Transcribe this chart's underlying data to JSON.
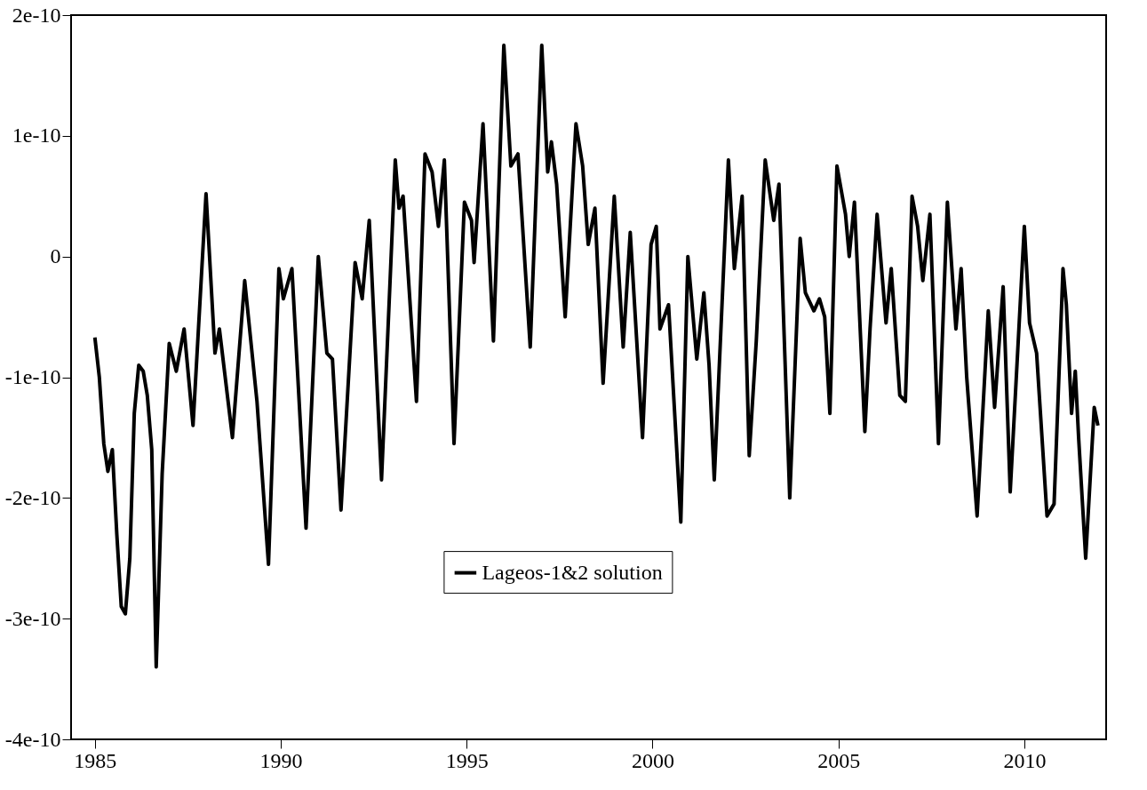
{
  "chart_data": {
    "type": "line",
    "xlim": [
      1984.36,
      2012.2
    ],
    "ylim": [
      -4e-10,
      2e-10
    ],
    "xticks": [
      1985,
      1990,
      1995,
      2000,
      2005,
      2010
    ],
    "yticks": [
      {
        "value": -4e-10,
        "label": "-4e-10"
      },
      {
        "value": -3e-10,
        "label": "-3e-10"
      },
      {
        "value": -2e-10,
        "label": "-2e-10"
      },
      {
        "value": -1e-10,
        "label": "-1e-10"
      },
      0,
      {
        "value": 1e-10,
        "label": "1e-10"
      },
      {
        "value": 2e-10,
        "label": "2e-10"
      }
    ],
    "grid": false,
    "legend": "bottom",
    "marker": "none",
    "line_style": "solid",
    "series": [
      {
        "name": "Lageos-1&2 solution",
        "color": "#000000",
        "x": [
          1985.0,
          1985.12,
          1985.24,
          1985.35,
          1985.47,
          1985.59,
          1985.71,
          1985.82,
          1985.94,
          1986.06,
          1986.18,
          1986.3,
          1986.41,
          1986.53,
          1986.65,
          1986.81,
          1987.0,
          1987.19,
          1987.4,
          1987.64,
          1987.99,
          1988.23,
          1988.35,
          1988.7,
          1989.03,
          1989.36,
          1989.67,
          1989.95,
          1990.07,
          1990.3,
          1990.68,
          1991.01,
          1991.24,
          1991.39,
          1991.62,
          1992.0,
          1992.19,
          1992.38,
          1992.71,
          1993.08,
          1993.18,
          1993.29,
          1993.65,
          1993.88,
          1994.07,
          1994.24,
          1994.4,
          1994.66,
          1994.94,
          1995.13,
          1995.2,
          1995.44,
          1995.72,
          1996.0,
          1996.19,
          1996.38,
          1996.71,
          1997.02,
          1997.18,
          1997.28,
          1997.42,
          1997.65,
          1997.94,
          1998.12,
          1998.27,
          1998.45,
          1998.67,
          1998.97,
          1999.21,
          1999.4,
          1999.73,
          1999.96,
          2000.1,
          2000.2,
          2000.43,
          2000.76,
          2000.95,
          2001.19,
          2001.38,
          2001.52,
          2001.66,
          2002.04,
          2002.2,
          2002.41,
          2002.6,
          2002.79,
          2003.03,
          2003.26,
          2003.4,
          2003.69,
          2003.97,
          2004.11,
          2004.34,
          2004.49,
          2004.63,
          2004.77,
          2004.96,
          2005.19,
          2005.29,
          2005.43,
          2005.71,
          2005.85,
          2006.04,
          2006.28,
          2006.42,
          2006.65,
          2006.8,
          2006.98,
          2007.13,
          2007.27,
          2007.46,
          2007.69,
          2007.93,
          2008.16,
          2008.3,
          2008.45,
          2008.73,
          2009.03,
          2009.2,
          2009.43,
          2009.62,
          2010.0,
          2010.14,
          2010.33,
          2010.61,
          2010.8,
          2011.04,
          2011.13,
          2011.27,
          2011.37,
          2011.46,
          2011.65,
          2011.88,
          2011.98
        ],
        "values": [
          -6.7e-11,
          -1e-10,
          -1.55e-10,
          -1.78e-10,
          -1.6e-10,
          -2.3e-10,
          -2.9e-10,
          -2.96e-10,
          -2.5e-10,
          -1.3e-10,
          -9e-11,
          -9.5e-11,
          -1.15e-10,
          -1.6e-10,
          -3.4e-10,
          -1.8e-10,
          -7.2e-11,
          -9.5e-11,
          -6e-11,
          -1.4e-10,
          5.2e-11,
          -8e-11,
          -6e-11,
          -1.5e-10,
          -2e-11,
          -1.2e-10,
          -2.55e-10,
          -1e-11,
          -3.5e-11,
          -1e-11,
          -2.25e-10,
          0,
          -8e-11,
          -8.5e-11,
          -2.1e-10,
          -5e-12,
          -3.5e-11,
          3e-11,
          -1.85e-10,
          8e-11,
          4e-11,
          5e-11,
          -1.2e-10,
          8.5e-11,
          7e-11,
          2.5e-11,
          8e-11,
          -1.55e-10,
          4.5e-11,
          3e-11,
          -5e-12,
          1.1e-10,
          -7e-11,
          1.75e-10,
          7.5e-11,
          8.5e-11,
          -7.5e-11,
          1.75e-10,
          7e-11,
          9.5e-11,
          6e-11,
          -5e-11,
          1.1e-10,
          7.5e-11,
          1e-11,
          4e-11,
          -1.05e-10,
          5e-11,
          -7.5e-11,
          2e-11,
          -1.5e-10,
          1e-11,
          2.5e-11,
          -6e-11,
          -4e-11,
          -2.2e-10,
          0,
          -8.5e-11,
          -3e-11,
          -9e-11,
          -1.85e-10,
          8e-11,
          -1e-11,
          5e-11,
          -1.65e-10,
          -7e-11,
          8e-11,
          3e-11,
          6e-11,
          -2e-10,
          1.5e-11,
          -3e-11,
          -4.5e-11,
          -3.5e-11,
          -5e-11,
          -1.3e-10,
          7.5e-11,
          3.5e-11,
          0,
          4.5e-11,
          -1.45e-10,
          -6e-11,
          3.5e-11,
          -5.5e-11,
          -1e-11,
          -1.15e-10,
          -1.2e-10,
          5e-11,
          2.5e-11,
          -2e-11,
          3.5e-11,
          -1.55e-10,
          4.5e-11,
          -6e-11,
          -1e-11,
          -1e-10,
          -2.15e-10,
          -4.5e-11,
          -1.25e-10,
          -2.5e-11,
          -1.95e-10,
          2.5e-11,
          -5.5e-11,
          -8e-11,
          -2.15e-10,
          -2.05e-10,
          -1e-11,
          -4e-11,
          -1.3e-10,
          -9.5e-11,
          -1.5e-10,
          -2.5e-10,
          -1.25e-10,
          -1.4e-10
        ]
      }
    ]
  }
}
